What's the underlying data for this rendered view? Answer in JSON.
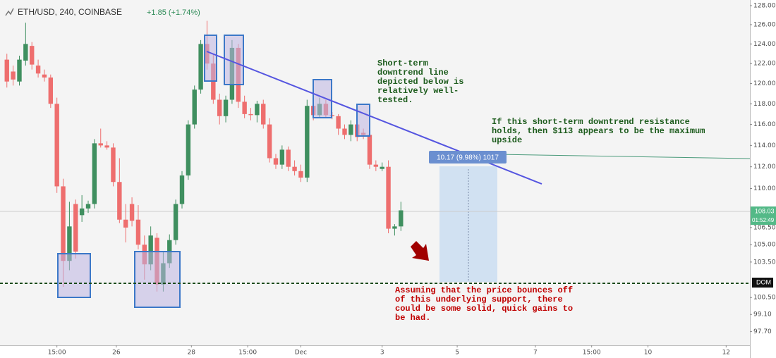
{
  "chart_data": {
    "type": "candlestick",
    "title": "ETH/USD, 240, COINBASE",
    "subtitle": "+1.85 (+1.74%)",
    "log_scale": true,
    "grid": false,
    "up_color": "#3f8f5f",
    "down_color": "#ee6e6e",
    "x": [
      0,
      1,
      2,
      3,
      4,
      5,
      6,
      7,
      8,
      9,
      10,
      11,
      12,
      13,
      14,
      15,
      16,
      17,
      18,
      19,
      20,
      21,
      22,
      23,
      24,
      25,
      26,
      27,
      28,
      29,
      30,
      31,
      32,
      33,
      34,
      35,
      36,
      37,
      38,
      39,
      40,
      41,
      42,
      43,
      44,
      45,
      46,
      47,
      48,
      49,
      50,
      51,
      52,
      53,
      54,
      55,
      56,
      57,
      58,
      59,
      60,
      61,
      62,
      63
    ],
    "open": [
      122.4,
      121.2,
      120.2,
      122.3,
      123.8,
      121.8,
      120.9,
      120.6,
      118.0,
      110.2,
      103.6,
      108.6,
      107.6,
      108.2,
      108.6,
      114.2,
      114.0,
      113.8,
      110.6,
      107.2,
      108.6,
      107.2,
      105.0,
      103.3,
      105.6,
      101.6,
      103.4,
      105.4,
      108.6,
      111.2,
      116.0,
      119.4,
      124.0,
      122.0,
      118.4,
      116.8,
      118.4,
      123.6,
      118.2,
      117.0,
      116.9,
      118.0,
      116.0,
      112.8,
      112.2,
      113.6,
      112.0,
      111.6,
      111.0,
      117.8,
      116.9,
      118.0,
      116.9,
      116.8,
      115.6,
      115.0,
      116.0,
      115.2,
      115.0,
      112.2,
      111.8,
      112.0,
      106.4,
      106.6
    ],
    "high": [
      123.0,
      121.8,
      122.8,
      126.2,
      124.2,
      122.4,
      121.4,
      120.9,
      118.6,
      110.9,
      108.8,
      109.0,
      109.4,
      108.9,
      114.6,
      115.6,
      114.4,
      114.2,
      112.8,
      108.6,
      109.2,
      108.5,
      105.8,
      106.6,
      106.0,
      104.4,
      105.9,
      109.0,
      111.6,
      116.4,
      119.8,
      124.4,
      126.4,
      123.0,
      119.0,
      118.8,
      124.4,
      124.0,
      118.8,
      117.6,
      118.3,
      118.4,
      116.6,
      113.2,
      114.0,
      113.9,
      112.6,
      112.2,
      118.4,
      118.6,
      118.6,
      118.4,
      117.2,
      117.0,
      116.0,
      116.4,
      116.2,
      115.6,
      115.6,
      112.6,
      112.4,
      112.6,
      106.8,
      108.8
    ],
    "low": [
      119.6,
      119.8,
      119.8,
      121.8,
      121.4,
      120.6,
      120.2,
      117.6,
      109.6,
      101.4,
      102.8,
      103.8,
      107.0,
      107.8,
      108.2,
      113.8,
      113.6,
      110.2,
      106.9,
      105.2,
      106.6,
      104.6,
      102.0,
      102.8,
      101.0,
      101.0,
      103.0,
      105.0,
      108.2,
      110.8,
      115.6,
      119.0,
      121.4,
      118.0,
      116.0,
      116.2,
      118.0,
      117.6,
      116.6,
      116.4,
      116.2,
      115.6,
      112.4,
      111.8,
      111.8,
      111.6,
      111.2,
      110.6,
      110.6,
      116.4,
      116.6,
      116.6,
      116.5,
      115.0,
      114.6,
      114.4,
      114.4,
      114.6,
      111.8,
      111.6,
      111.6,
      106.0,
      105.8,
      106.2
    ],
    "close": [
      120.2,
      120.4,
      122.4,
      124.0,
      121.9,
      121.0,
      120.6,
      118.0,
      110.2,
      103.6,
      106.6,
      104.4,
      108.2,
      108.6,
      114.2,
      114.0,
      113.8,
      110.6,
      107.2,
      106.5,
      107.1,
      105.0,
      103.3,
      105.8,
      101.6,
      103.4,
      105.4,
      108.6,
      111.2,
      116.0,
      119.4,
      124.0,
      122.0,
      118.4,
      116.8,
      118.4,
      123.6,
      118.2,
      117.0,
      116.9,
      118.0,
      116.0,
      112.8,
      112.2,
      113.6,
      112.0,
      111.6,
      111.0,
      117.8,
      116.9,
      118.0,
      116.9,
      116.8,
      115.6,
      115.0,
      116.0,
      114.8,
      115.0,
      112.2,
      112.0,
      112.0,
      106.4,
      106.6,
      108.03
    ],
    "xlim": [
      -1.1,
      118.8
    ],
    "ylim": [
      96.6,
      128.6
    ],
    "yticks": [
      {
        "value": 128,
        "label": "128.00"
      },
      {
        "value": 126,
        "label": "126.00"
      },
      {
        "value": 124,
        "label": "124.00"
      },
      {
        "value": 122,
        "label": "122.00"
      },
      {
        "value": 120,
        "label": "120.00"
      },
      {
        "value": 118,
        "label": "118.00"
      },
      {
        "value": 116,
        "label": "116.00"
      },
      {
        "value": 114,
        "label": "114.00"
      },
      {
        "value": 112,
        "label": "112.00"
      },
      {
        "value": 110,
        "label": "110.00"
      },
      {
        "value": 106.5,
        "label": "106.50"
      },
      {
        "value": 105,
        "label": "105.00"
      },
      {
        "value": 103.5,
        "label": "103.50"
      },
      {
        "value": 100.5,
        "label": "100.50"
      },
      {
        "value": 99.1,
        "label": "99.10"
      },
      {
        "value": 97.7,
        "label": "97.70"
      }
    ],
    "xticks": [
      {
        "value": 8,
        "label": "15:00"
      },
      {
        "value": 17.5,
        "label": "26"
      },
      {
        "value": 29.5,
        "label": "28"
      },
      {
        "value": 38.5,
        "label": "15:00"
      },
      {
        "value": 47,
        "label": "Dec"
      },
      {
        "value": 60,
        "label": "3"
      },
      {
        "value": 72,
        "label": "5"
      },
      {
        "value": 84.5,
        "label": "7"
      },
      {
        "value": 93.5,
        "label": "15:00"
      },
      {
        "value": 102.5,
        "label": "10"
      },
      {
        "value": 115,
        "label": "12"
      }
    ],
    "last_price_label": "108.03",
    "countdown": "01:52:49",
    "support_label": "DOM",
    "measure_label": "10.17 (9.98%) 1017",
    "annotations": [
      {
        "color": "#1d5c1d",
        "lines": [
          "Short-term",
          "downtrend line",
          "depicted below is",
          "relatively well-",
          "tested."
        ]
      },
      {
        "color": "#1d5c1d",
        "lines": [
          "If this short-term downtrend resistance",
          "holds, then $113 appears to be the maximum",
          "upside"
        ]
      },
      {
        "color": "#c00000",
        "lines": [
          "Assuming that the price bounces off",
          "of this underlying support, there",
          "could be some solid, quick gains to",
          "be had."
        ]
      }
    ]
  }
}
